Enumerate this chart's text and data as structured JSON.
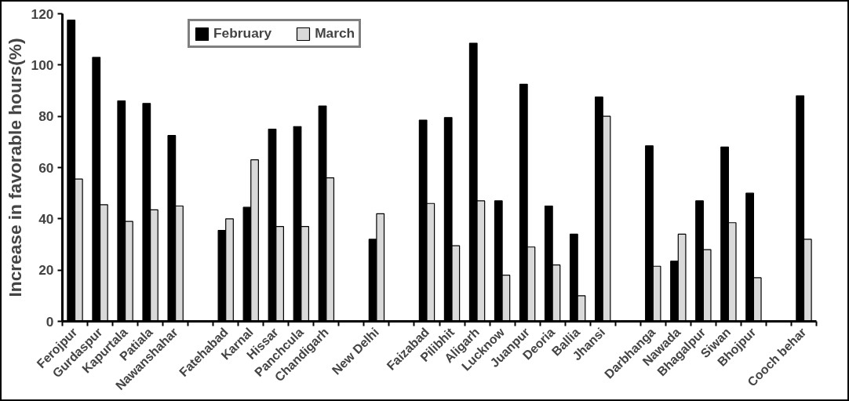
{
  "chart_data": {
    "type": "bar",
    "ylabel": "Increase in favorable hours(%)",
    "categories": [
      "Ferojpur",
      "Gurdaspur",
      "Kapurtala",
      "Patiala",
      "Nawanshahar",
      null,
      "Fatehabad",
      "Karnal",
      "Hissar",
      "Panchcula",
      "Chandigarh",
      null,
      "New Delhi",
      null,
      "Faizabad",
      "Pilibhit",
      "Aligarh",
      "Lucknow",
      "Juanpur",
      "Deoria",
      "Ballia",
      "Jhansi",
      null,
      "Darbhanga",
      "Nawada",
      "Bhagalpur",
      "Siwan",
      "Bhojpur",
      null,
      "Cooch behar"
    ],
    "series": [
      {
        "name": "February",
        "color": "#000000",
        "values": [
          117.5,
          103,
          86,
          85,
          72.5,
          null,
          35.5,
          44.5,
          75,
          76,
          84,
          null,
          32,
          null,
          78.5,
          79.5,
          108.5,
          47,
          92.5,
          45,
          34,
          87.5,
          null,
          68.5,
          23.5,
          47,
          68,
          50,
          null,
          88
        ]
      },
      {
        "name": "March",
        "color": "#d9d9d9",
        "values": [
          55.5,
          45.5,
          39,
          43.5,
          45,
          null,
          40,
          63,
          37,
          37,
          56,
          null,
          42,
          null,
          46,
          29.5,
          47,
          18,
          29,
          22,
          10,
          80,
          null,
          21.5,
          34,
          28,
          38.5,
          17,
          null,
          32
        ]
      }
    ],
    "ylim": [
      0,
      120
    ],
    "yticks": [
      0,
      20,
      40,
      60,
      80,
      100,
      120
    ],
    "grid": false,
    "legend": "top"
  }
}
